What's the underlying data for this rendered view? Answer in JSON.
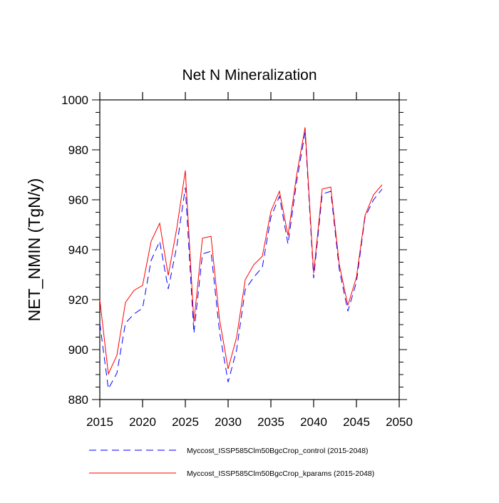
{
  "chart_data": {
    "type": "line",
    "title": "Net N Mineralization",
    "xlabel": "",
    "ylabel": "NET_NMIN  (TgN/y)",
    "xlim": [
      2015,
      2050
    ],
    "ylim": [
      880,
      1000
    ],
    "xticks": [
      2015,
      2020,
      2025,
      2030,
      2035,
      2040,
      2045,
      2050
    ],
    "yticks": [
      880,
      900,
      920,
      940,
      960,
      980,
      1000
    ],
    "grid": false,
    "legend_position": "bottom",
    "x": [
      2015,
      2016,
      2017,
      2018,
      2019,
      2020,
      2021,
      2022,
      2023,
      2024,
      2025,
      2026,
      2027,
      2028,
      2029,
      2030,
      2031,
      2032,
      2033,
      2034,
      2035,
      2036,
      2037,
      2038,
      2039,
      2040,
      2041,
      2042,
      2043,
      2044,
      2045,
      2046,
      2047,
      2048
    ],
    "series": [
      {
        "name": "Myccost_ISSP585Clm50BgcCrop_control (2015-2048)",
        "color": "#0000ff",
        "style": "dashed",
        "values": [
          910.6,
          884.3,
          890.6,
          910.6,
          914.3,
          916.6,
          935.7,
          943.4,
          924.3,
          941.4,
          964.9,
          906.6,
          938.3,
          939.4,
          907,
          887,
          900,
          924,
          929,
          933,
          953,
          961.4,
          942.3,
          967,
          987,
          928.6,
          962.3,
          963.4,
          932,
          915.4,
          927,
          953,
          960,
          964.3
        ]
      },
      {
        "name": "Myccost_ISSP585Clm50BgcCrop_kparams (2015-2048)",
        "color": "#ff0000",
        "style": "solid",
        "values": [
          920,
          890.3,
          897.7,
          918.9,
          923.7,
          925.7,
          943.4,
          950.6,
          929.7,
          948.6,
          971.7,
          911,
          944.6,
          945.4,
          912,
          892.3,
          905,
          928,
          934,
          937.4,
          955.4,
          963.4,
          945.7,
          969.7,
          989,
          930.6,
          964.3,
          965.1,
          934,
          917.7,
          929,
          953.7,
          962,
          966
        ]
      }
    ]
  }
}
